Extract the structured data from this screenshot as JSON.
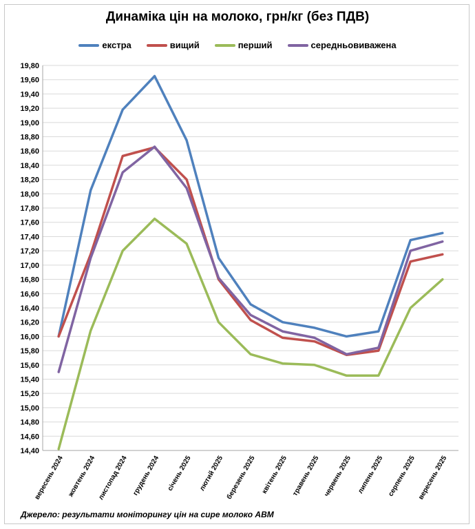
{
  "chart_data": {
    "type": "line",
    "title": "Динаміка цін на молоко, грн/кг (без ПДВ)",
    "xlabel": "",
    "ylabel": "",
    "ylim": [
      14.4,
      19.8
    ],
    "ytick_step": 0.2,
    "grid": true,
    "legend_position": "top",
    "categories": [
      "вересень 2024",
      "жовтень 2024",
      "листопад 2024",
      "грудень 2024",
      "січень 2025",
      "лютий 2025",
      "березень 2025",
      "квітень 2025",
      "травень 2025",
      "червень 2025",
      "липень 2025",
      "серпень 2025",
      "вересень 2025"
    ],
    "series": [
      {
        "name": "екстра",
        "color": "#4F81BD",
        "values": [
          16.0,
          18.05,
          19.18,
          19.65,
          18.75,
          17.1,
          16.45,
          16.2,
          16.12,
          16.0,
          16.07,
          17.35,
          17.45
        ]
      },
      {
        "name": "вищий",
        "color": "#C0504D",
        "values": [
          16.0,
          17.15,
          18.53,
          18.65,
          18.2,
          16.8,
          16.23,
          15.98,
          15.93,
          15.74,
          15.8,
          17.05,
          17.15
        ]
      },
      {
        "name": "перший",
        "color": "#9BBB59",
        "values": [
          14.42,
          16.08,
          17.2,
          17.65,
          17.3,
          16.2,
          15.75,
          15.62,
          15.6,
          15.45,
          15.45,
          16.4,
          16.8
        ]
      },
      {
        "name": "середньовиважена",
        "color": "#8064A2",
        "values": [
          15.5,
          17.1,
          18.3,
          18.66,
          18.08,
          16.82,
          16.3,
          16.07,
          15.98,
          15.75,
          15.84,
          17.2,
          17.33
        ]
      }
    ],
    "source_note": "Джерело: результати моніторингу цін на сире молоко АВМ"
  }
}
